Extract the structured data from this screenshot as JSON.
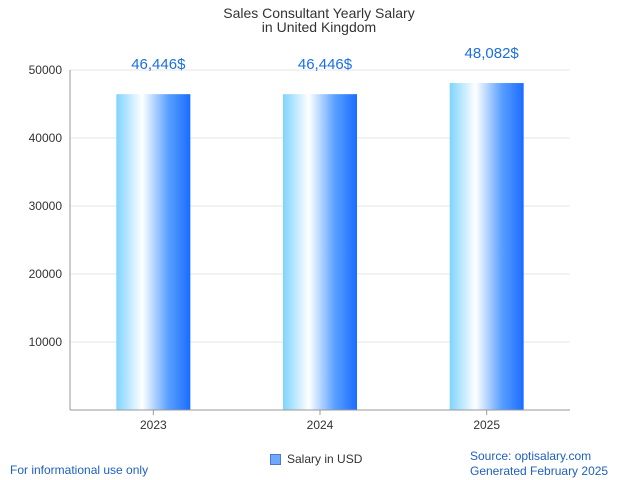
{
  "chart_data": {
    "type": "bar",
    "title": "Sales Consultant Yearly Salary",
    "subtitle": "in United Kingdom",
    "categories": [
      "2023",
      "2024",
      "2025"
    ],
    "series": [
      {
        "name": "Salary in USD",
        "values": [
          46446,
          46446,
          48082
        ]
      }
    ],
    "data_labels": [
      "46,446$",
      "46,446$",
      "48,082$"
    ],
    "y_ticks": [
      "10000",
      "20000",
      "30000",
      "40000",
      "50000"
    ],
    "ylim": [
      0,
      50000
    ],
    "grid": true,
    "legend_position": "bottom-center",
    "colors": {
      "bar_edge": "#1a6cff",
      "bar_light": "#ffffff",
      "bar_cyan": "#7fd3ff",
      "label": "#1b6fe0"
    }
  },
  "footer": {
    "left": "For informational use only",
    "source": "Source: optisalary.com",
    "generated": "Generated February 2025"
  }
}
